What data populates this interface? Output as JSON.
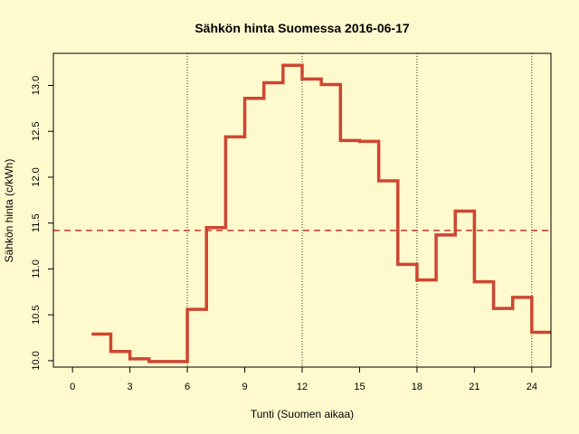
{
  "chart_data": {
    "type": "line",
    "title": "Sähkön hinta Suomessa 2016-06-17",
    "xlabel": "Tunti (Suomen aikaa)",
    "ylabel": "Sähkön hinta (c/kWh)",
    "xlim": [
      -1,
      25
    ],
    "ylim": [
      9.93,
      13.35
    ],
    "x_ticks": [
      0,
      3,
      6,
      9,
      12,
      15,
      18,
      21,
      24
    ],
    "y_ticks": [
      10.0,
      10.5,
      11.0,
      11.5,
      12.0,
      12.5,
      13.0
    ],
    "y_tick_labels": [
      "10.0",
      "10.5",
      "11.0",
      "11.5",
      "12.0",
      "12.5",
      "13.0"
    ],
    "vertical_dotted_lines_x": [
      6,
      12,
      18,
      24
    ],
    "mean_line": 11.42,
    "series": [
      {
        "step": "post",
        "color": "#cd4631",
        "x": [
          1,
          2,
          3,
          4,
          5,
          6,
          7,
          8,
          9,
          10,
          11,
          12,
          13,
          14,
          15,
          16,
          17,
          18,
          19,
          20,
          21,
          22,
          23,
          24
        ],
        "values": [
          10.29,
          10.1,
          10.02,
          9.99,
          9.99,
          10.56,
          11.45,
          12.44,
          12.86,
          13.03,
          13.22,
          13.07,
          13.01,
          12.4,
          12.39,
          11.96,
          11.05,
          10.88,
          11.37,
          11.63,
          10.86,
          10.57,
          10.69,
          10.31
        ]
      }
    ],
    "colors": {
      "background": "#fffacd",
      "series": "#cd4631",
      "mean": "#cd4631",
      "axis": "#000000"
    }
  }
}
